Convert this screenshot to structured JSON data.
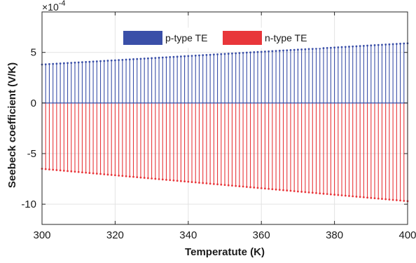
{
  "chart_data": {
    "type": "bar",
    "xlabel": "Temperatute (K)",
    "ylabel": "Seebeck coefficient (V/K)",
    "y_exponent_label": "×10",
    "y_exponent": "-4",
    "y_scale": 0.0001,
    "xlim": [
      300,
      400
    ],
    "ylim": [
      -12,
      9
    ],
    "x_ticks": [
      300,
      320,
      340,
      360,
      380,
      400
    ],
    "x_tick_labels": [
      "300",
      "320",
      "340",
      "360",
      "380",
      "400"
    ],
    "y_ticks": [
      -10,
      -5,
      0,
      5
    ],
    "y_tick_labels": [
      "-10",
      "-5",
      "0",
      "5"
    ],
    "grid": true,
    "legend_position": "top-center",
    "series": [
      {
        "name": "p-type TE",
        "color": "#3a4fa8",
        "x_start": 300,
        "x_end": 400,
        "x_step": 1,
        "y_start": 3.8,
        "y_end": 5.9
      },
      {
        "name": "n-type TE",
        "color": "#e8363a",
        "x_start": 300,
        "x_end": 400,
        "x_step": 1,
        "y_start": -6.5,
        "y_end": -9.7
      }
    ]
  }
}
